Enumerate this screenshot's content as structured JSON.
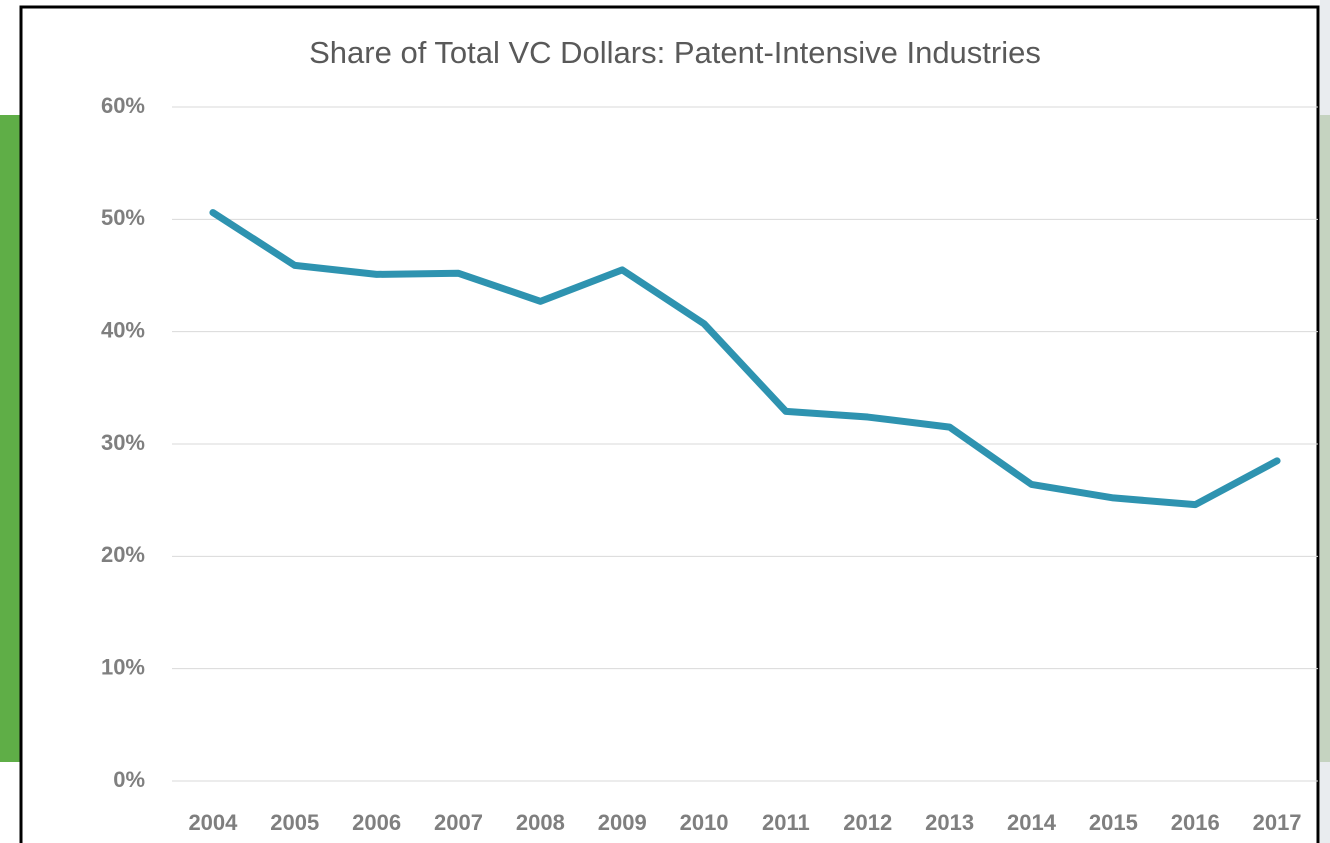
{
  "chart_data": {
    "type": "line",
    "title": "Share of Total VC Dollars: Patent-Intensive Industries",
    "categories": [
      "2004",
      "2005",
      "2006",
      "2007",
      "2008",
      "2009",
      "2010",
      "2011",
      "2012",
      "2013",
      "2014",
      "2015",
      "2016",
      "2017"
    ],
    "series": [
      {
        "name": "Share of Total VC Dollars",
        "color": "#2e93b0",
        "values": [
          50.6,
          45.9,
          45.1,
          45.2,
          42.7,
          45.5,
          40.7,
          32.9,
          32.4,
          31.5,
          26.4,
          25.2,
          24.6,
          28.5
        ]
      }
    ],
    "ylim": [
      0,
      60
    ],
    "yticks": [
      {
        "value": 0,
        "label": "0%"
      },
      {
        "value": 10,
        "label": "10%"
      },
      {
        "value": 20,
        "label": "20%"
      },
      {
        "value": 30,
        "label": "30%"
      },
      {
        "value": 40,
        "label": "40%"
      },
      {
        "value": 50,
        "label": "50%"
      },
      {
        "value": 60,
        "label": "60%"
      }
    ],
    "grid": true
  }
}
